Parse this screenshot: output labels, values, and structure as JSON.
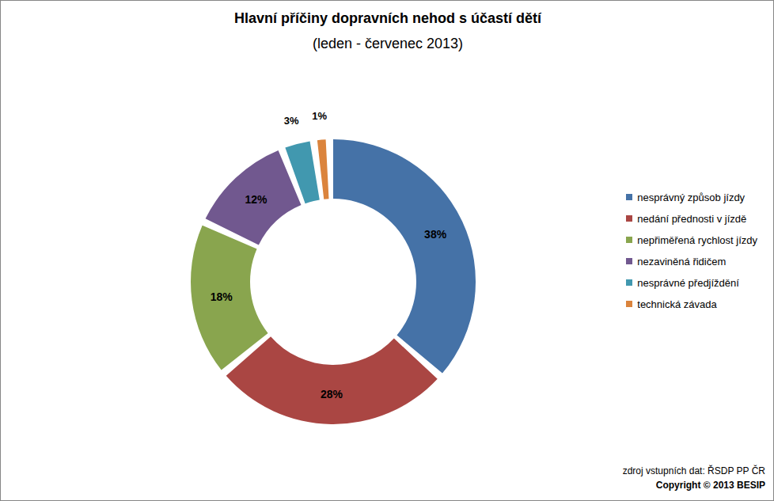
{
  "chart_data": {
    "type": "donut",
    "title": "Hlavní příčiny dopravních nehod s účastí dětí",
    "subtitle": "(leden - červenec 2013)",
    "categories": [
      "nesprávný způsob jízdy",
      "nedání přednosti v jízdě",
      "nepřiměřená rychlost jízdy",
      "nezaviněná řidičem",
      "nesprávné předjíždění",
      "technická závada"
    ],
    "values": [
      38,
      28,
      18,
      12,
      3,
      1
    ],
    "value_labels": [
      "38%",
      "28%",
      "18%",
      "12%",
      "3%",
      "1%"
    ],
    "colors": [
      "#4572a7",
      "#aa4643",
      "#89a54e",
      "#71588f",
      "#4198af",
      "#db843d"
    ],
    "data_labels": true,
    "legend": "right",
    "annotations": [
      "zdroj vstupních dat: ŘSDP PP ČR",
      "Copyright © 2013 BESIP"
    ]
  }
}
